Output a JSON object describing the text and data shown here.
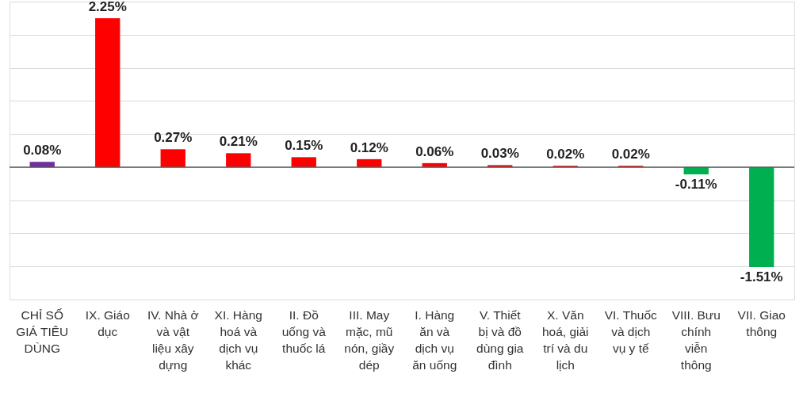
{
  "chart_data": {
    "type": "bar",
    "categories": [
      "CHỈ SỐ GIÁ TIÊU DÙNG",
      "IX. Giáo dục",
      "IV. Nhà ở và vật liệu xây dựng",
      "XI. Hàng hoá và dịch vụ khác",
      "II. Đồ uống và thuốc lá",
      "III. May mặc, mũ nón, giầy dép",
      "I. Hàng ăn và dịch vụ ăn uống",
      "V. Thiết bị và đồ dùng gia đình",
      "X. Văn hoá, giải trí và du lịch",
      "VI. Thuốc và dịch vụ y tế",
      "VIII. Bưu chính viễn thông",
      "VII. Giao thông"
    ],
    "values": [
      0.08,
      2.25,
      0.27,
      0.21,
      0.15,
      0.12,
      0.06,
      0.03,
      0.02,
      0.02,
      -0.11,
      -1.51
    ],
    "colors": [
      "#7030a0",
      "#ff0000",
      "#ff0000",
      "#ff0000",
      "#ff0000",
      "#ff0000",
      "#ff0000",
      "#ff0000",
      "#ff0000",
      "#ff0000",
      "#00b050",
      "#00b050"
    ],
    "value_labels": [
      "0.08%",
      "2.25%",
      "0.27%",
      "0.21%",
      "0.15%",
      "0.12%",
      "0.06%",
      "0.03%",
      "0.02%",
      "0.02%",
      "-0.11%",
      "-1.51%"
    ],
    "ylim": [
      -2,
      2.5
    ],
    "yticks": [
      {
        "value": -2,
        "label": null
      },
      {
        "value": -1.5,
        "label": null
      },
      {
        "value": -1,
        "label": null
      },
      {
        "value": -0.5,
        "label": null
      },
      {
        "value": 0,
        "label": null
      },
      {
        "value": 0.5,
        "label": null
      },
      {
        "value": 1,
        "label": null
      },
      {
        "value": 1.5,
        "label": null
      },
      {
        "value": 2,
        "label": null
      },
      {
        "value": 2.5,
        "label": null
      }
    ],
    "grid": "y",
    "tick_labels": "x"
  }
}
